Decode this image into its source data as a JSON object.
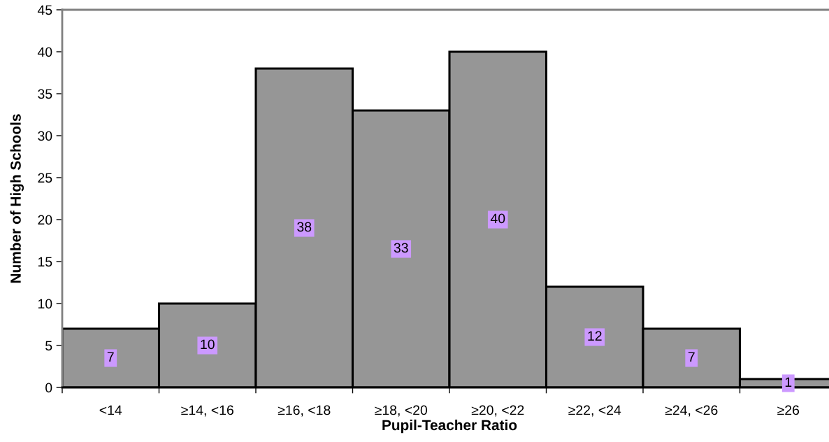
{
  "chart_data": {
    "type": "bar",
    "categories": [
      "<14",
      "≥14, <16",
      "≥16, <18",
      "≥18, <20",
      "≥20, <22",
      "≥22, <24",
      "≥24, <26",
      "≥26"
    ],
    "values": [
      7,
      10,
      38,
      33,
      40,
      12,
      7,
      1
    ],
    "color": "#969696",
    "xlabel": "Pupil-Teacher Ratio",
    "ylabel": "Number of High Schools",
    "ylim": [
      0,
      45
    ],
    "yticks": [
      0,
      5,
      10,
      15,
      20,
      25,
      30,
      35,
      40,
      45
    ],
    "data_labels": true,
    "grid": false
  }
}
